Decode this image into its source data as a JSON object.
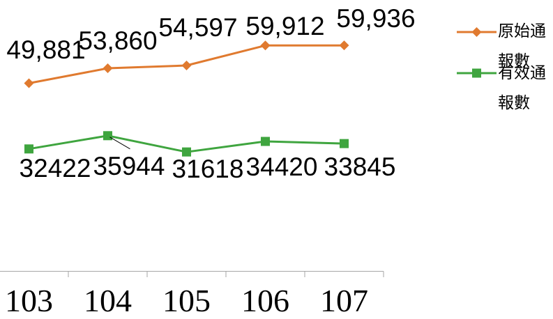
{
  "chart_data": {
    "type": "line",
    "categories": [
      "103",
      "104",
      "105",
      "106",
      "107"
    ],
    "series": [
      {
        "name": "原始通報數",
        "values": [
          49881,
          53860,
          54597,
          59912,
          59936
        ],
        "data_labels": [
          "49,881",
          "53,860",
          "54,597",
          "59,912",
          "59,936"
        ],
        "color": "#E07A2F",
        "marker": "diamond"
      },
      {
        "name": "有效通報數",
        "values": [
          32422,
          35944,
          31618,
          34420,
          33845
        ],
        "data_labels": [
          "32422",
          "35944",
          "31618",
          "34420",
          "33845"
        ],
        "color": "#3FA53F",
        "marker": "square"
      }
    ],
    "ylim": [
      0,
      72000
    ],
    "grid": false,
    "legend": "right"
  }
}
